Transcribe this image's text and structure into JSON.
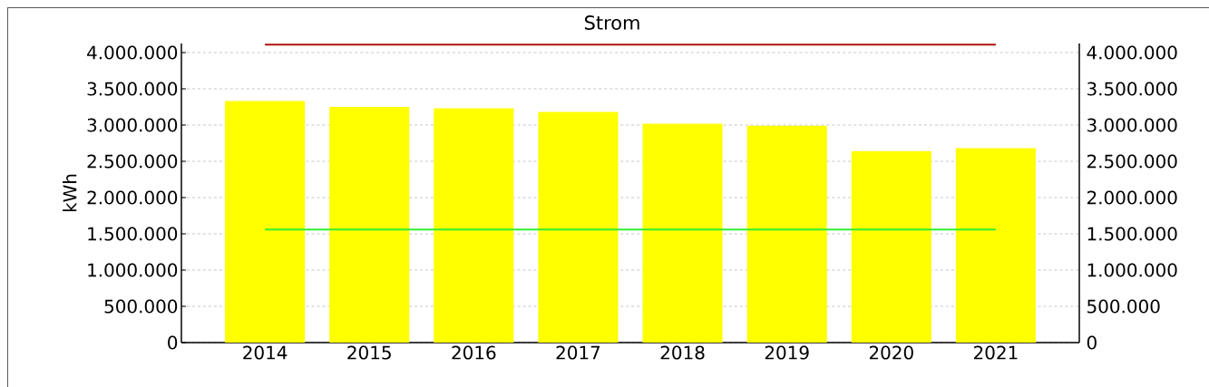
{
  "chart_data": {
    "type": "bar",
    "title": "Strom",
    "ylabel": "kWh",
    "categories": [
      "2014",
      "2015",
      "2016",
      "2017",
      "2018",
      "2019",
      "2020",
      "2021"
    ],
    "series": [
      {
        "color": "#ffff00",
        "values": [
          3330000,
          3250000,
          3230000,
          3180000,
          3020000,
          2990000,
          2640000,
          2680000
        ]
      },
      {
        "type": "line",
        "color": "#33ee33",
        "values": [
          1560000,
          1560000,
          1560000,
          1560000,
          1560000,
          1560000,
          1560000,
          1560000
        ]
      },
      {
        "type": "line",
        "color": "#b01010",
        "values": [
          4110000,
          4110000,
          4110000,
          4110000,
          4110000,
          4110000,
          4110000,
          4110000
        ]
      }
    ],
    "ylim": [
      0,
      4125000
    ],
    "yticks": [
      {
        "value": 0,
        "label": "0"
      },
      {
        "value": 500000,
        "label": "500.000"
      },
      {
        "value": 1000000,
        "label": "1.000.000"
      },
      {
        "value": 1500000,
        "label": "1.500.000"
      },
      {
        "value": 2000000,
        "label": "2.000.000"
      },
      {
        "value": 2500000,
        "label": "2.500.000"
      },
      {
        "value": 3000000,
        "label": "3.000.000"
      },
      {
        "value": 3500000,
        "label": "3.500.000"
      },
      {
        "value": 4000000,
        "label": "4.000.000"
      }
    ],
    "y2lim": [
      0,
      4125000
    ],
    "y2ticks": [
      {
        "value": 0,
        "label": "0"
      },
      {
        "value": 500000,
        "label": "500.000"
      },
      {
        "value": 1000000,
        "label": "1.000.000"
      },
      {
        "value": 1500000,
        "label": "1.500.000"
      },
      {
        "value": 2000000,
        "label": "2.000.000"
      },
      {
        "value": 2500000,
        "label": "2.500.000"
      },
      {
        "value": 3000000,
        "label": "3.000.000"
      },
      {
        "value": 3500000,
        "label": "3.500.000"
      },
      {
        "value": 4000000,
        "label": "4.000.000"
      }
    ],
    "grid": "y",
    "marker": "none",
    "line_style": "solid"
  }
}
